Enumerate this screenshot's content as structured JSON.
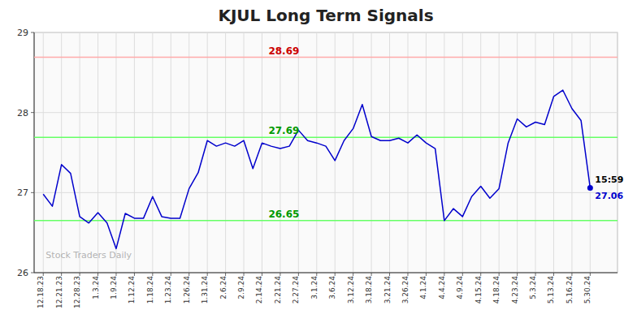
{
  "chart_data": {
    "type": "line",
    "title": "KJUL Long Term Signals",
    "categories": [
      "12.18.23",
      null,
      "12.21.23",
      null,
      "12.28.23",
      null,
      "1.3.24",
      null,
      "1.9.24",
      null,
      "1.12.24",
      null,
      "1.18.24",
      null,
      "1.23.24",
      null,
      "1.26.24",
      null,
      "1.31.24",
      null,
      "2.6.24",
      null,
      "2.9.24",
      null,
      "2.14.24",
      null,
      "2.21.24",
      null,
      "2.27.24",
      null,
      "3.1.24",
      null,
      "3.6.24",
      null,
      "3.12.24",
      null,
      "3.18.24",
      null,
      "3.21.24",
      null,
      "3.26.24",
      null,
      "4.1.24",
      null,
      "4.4.24",
      null,
      "4.9.24",
      null,
      "4.15.24",
      null,
      "4.18.24",
      null,
      "4.23.24",
      null,
      "5.3.24",
      null,
      "5.13.24",
      null,
      "5.16.24",
      null,
      "5.30.24"
    ],
    "values": [
      26.98,
      26.83,
      27.35,
      27.24,
      26.7,
      26.62,
      26.75,
      26.62,
      26.3,
      26.74,
      26.68,
      26.68,
      26.95,
      26.7,
      26.68,
      26.68,
      27.05,
      27.25,
      27.65,
      27.58,
      27.62,
      27.58,
      27.65,
      27.3,
      27.62,
      27.58,
      27.55,
      27.58,
      27.78,
      27.65,
      27.62,
      27.58,
      27.4,
      27.65,
      27.8,
      28.1,
      27.7,
      27.65,
      27.65,
      27.68,
      27.62,
      27.72,
      27.62,
      27.55,
      26.65,
      26.8,
      26.7,
      26.95,
      27.08,
      26.93,
      27.05,
      27.62,
      27.92,
      27.82,
      27.88,
      27.85,
      28.2,
      28.28,
      28.05,
      27.9,
      27.06
    ],
    "color": "#0000cc",
    "ylim": [
      26,
      29
    ],
    "yticks": [
      26,
      27,
      28,
      29
    ],
    "grid": true,
    "hlines": [
      {
        "value": 28.69,
        "label": "28.69",
        "color": "#ffaaaa",
        "label_color": "#cc0000"
      },
      {
        "value": 27.69,
        "label": "27.69",
        "color": "#66ff66",
        "label_color": "#009900"
      },
      {
        "value": 26.65,
        "label": "26.65",
        "color": "#66ff66",
        "label_color": "#009900"
      }
    ],
    "last_point": {
      "value": 27.06,
      "label": "27.06",
      "time": "15:59"
    },
    "watermark": "Stock Traders Daily"
  }
}
